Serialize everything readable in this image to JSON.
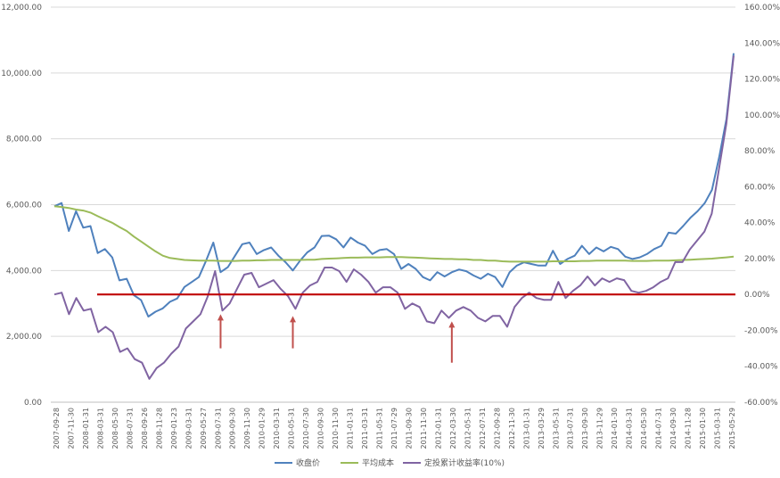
{
  "chart_data": {
    "type": "line",
    "title": "",
    "xlabel": "",
    "ylabel": "",
    "ylim": [
      0,
      12000
    ],
    "y2lim": [
      -60,
      160
    ],
    "grid": true,
    "legend_position": "bottom",
    "y_ticks": [
      "0.00",
      "2,000.00",
      "4,000.00",
      "6,000.00",
      "8,000.00",
      "10,000.00",
      "12,000.00"
    ],
    "y2_ticks": [
      "-60.00%",
      "-40.00%",
      "-20.00%",
      "0.00%",
      "20.00%",
      "40.00%",
      "60.00%",
      "80.00%",
      "100.00%",
      "120.00%",
      "140.00%",
      "160.00%"
    ],
    "x_tick_labels": [
      "2007-09-28",
      "2007-11-30",
      "2008-01-31",
      "2008-03-31",
      "2008-05-30",
      "2008-07-31",
      "2008-09-26",
      "2008-11-28",
      "2009-01-23",
      "2009-03-31",
      "2009-05-27",
      "2009-07-31",
      "2009-09-30",
      "2009-11-30",
      "2010-01-29",
      "2010-03-31",
      "2010-05-31",
      "2010-07-30",
      "2010-09-30",
      "2010-11-30",
      "2011-01-31",
      "2011-03-31",
      "2011-05-31",
      "2011-07-29",
      "2011-09-30",
      "2011-11-30",
      "2012-01-31",
      "2012-03-30",
      "2012-05-31",
      "2012-07-31",
      "2012-09-28",
      "2012-11-30",
      "2013-01-31",
      "2013-03-29",
      "2013-05-31",
      "2013-07-31",
      "2013-09-30",
      "2013-11-29",
      "2014-01-30",
      "2014-03-31",
      "2014-05-30",
      "2014-07-31",
      "2014-09-30",
      "2014-11-28",
      "2015-01-30",
      "2015-03-31",
      "2015-05-29"
    ],
    "series": [
      {
        "name": "收盘价",
        "axis": "left",
        "color": "#4f81bd",
        "values": [
          5950,
          6050,
          5200,
          5800,
          5300,
          5350,
          4530,
          4650,
          4400,
          3700,
          3750,
          3250,
          3100,
          2600,
          2750,
          2850,
          3050,
          3150,
          3500,
          3650,
          3800,
          4300,
          4850,
          3950,
          4100,
          4450,
          4800,
          4850,
          4500,
          4620,
          4700,
          4450,
          4250,
          4000,
          4300,
          4550,
          4700,
          5050,
          5060,
          4950,
          4700,
          5000,
          4850,
          4750,
          4500,
          4620,
          4650,
          4500,
          4050,
          4200,
          4050,
          3800,
          3700,
          3950,
          3820,
          3950,
          4030,
          3980,
          3850,
          3750,
          3900,
          3800,
          3500,
          3950,
          4150,
          4250,
          4200,
          4150,
          4150,
          4600,
          4200,
          4350,
          4450,
          4750,
          4500,
          4700,
          4580,
          4720,
          4650,
          4420,
          4350,
          4400,
          4500,
          4650,
          4750,
          5150,
          5120,
          5350,
          5600,
          5800,
          6050,
          6450,
          7450,
          8600,
          10600
        ]
      },
      {
        "name": "平均成本",
        "axis": "left",
        "color": "#9bbb59",
        "values": [
          5950,
          5930,
          5900,
          5850,
          5820,
          5760,
          5650,
          5550,
          5450,
          5320,
          5200,
          5030,
          4880,
          4730,
          4580,
          4450,
          4380,
          4350,
          4320,
          4310,
          4300,
          4300,
          4300,
          4290,
          4290,
          4290,
          4300,
          4300,
          4310,
          4310,
          4320,
          4320,
          4320,
          4320,
          4320,
          4330,
          4330,
          4350,
          4360,
          4370,
          4380,
          4390,
          4390,
          4400,
          4400,
          4400,
          4410,
          4410,
          4410,
          4400,
          4390,
          4380,
          4370,
          4360,
          4350,
          4350,
          4340,
          4340,
          4320,
          4320,
          4300,
          4300,
          4280,
          4270,
          4270,
          4270,
          4270,
          4270,
          4270,
          4280,
          4280,
          4280,
          4280,
          4290,
          4290,
          4300,
          4300,
          4300,
          4300,
          4300,
          4290,
          4290,
          4290,
          4300,
          4300,
          4300,
          4310,
          4320,
          4330,
          4340,
          4350,
          4360,
          4380,
          4400,
          4420
        ]
      },
      {
        "name": "定投累计收益率(10%)",
        "axis": "right",
        "color": "#8064a2",
        "values": [
          0,
          1,
          -11,
          -2,
          -9,
          -8,
          -21,
          -18,
          -21,
          -32,
          -30,
          -36,
          -38,
          -47,
          -41,
          -38,
          -33,
          -29,
          -19,
          -15,
          -11,
          -1,
          13,
          -9,
          -5,
          3,
          11,
          12,
          4,
          6,
          8,
          3,
          -1,
          -8,
          1,
          5,
          7,
          15,
          15,
          13,
          7,
          14,
          11,
          7,
          1,
          4,
          4,
          1,
          -8,
          -5,
          -7,
          -15,
          -16,
          -9,
          -13,
          -9,
          -7,
          -9,
          -13,
          -15,
          -12,
          -12,
          -18,
          -7,
          -2,
          1,
          -2,
          -3,
          -3,
          7,
          -2,
          2,
          5,
          10,
          5,
          9,
          7,
          9,
          8,
          2,
          1,
          2,
          4,
          7,
          9,
          18,
          18,
          25,
          30,
          35,
          45,
          70,
          95,
          133
        ]
      },
      {
        "name": "",
        "axis": "right",
        "color": "#c00000",
        "kind": "reference-line",
        "values": [
          0,
          0
        ]
      }
    ],
    "annotations": [
      {
        "type": "arrow",
        "color": "#c0504d",
        "x_index": 23,
        "from_pct": -30,
        "to_pct": -11
      },
      {
        "type": "arrow",
        "color": "#c0504d",
        "x_index": 33,
        "from_pct": -30,
        "to_pct": -12
      },
      {
        "type": "arrow",
        "color": "#c0504d",
        "x_index": 55,
        "from_pct": -38,
        "to_pct": -15
      }
    ],
    "legend": [
      {
        "label": "收盘价",
        "color": "#4f81bd"
      },
      {
        "label": "平均成本",
        "color": "#9bbb59"
      },
      {
        "label": "定投累计收益率(10%)",
        "color": "#8064a2"
      }
    ]
  }
}
